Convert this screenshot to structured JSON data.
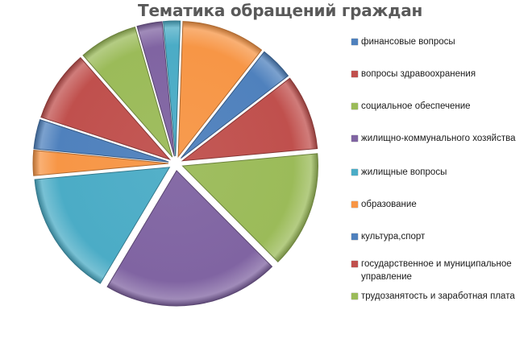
{
  "chart_data": {
    "type": "pie",
    "title": "Тематика обращений граждан",
    "legend_position": "right",
    "exploded": true,
    "categories": [
      "финансовые вопросы",
      "вопросы здравоохранения",
      "социальное обеспечение",
      "жилищно-коммунального хозяйства",
      "жилищные вопросы",
      "образование",
      "культура,спорт",
      "государственное и муниципальное управление",
      "трудозанятость и заработная плата"
    ],
    "slices_clockwise_from_top": [
      {
        "label": "",
        "value": 10.0,
        "color": "#F79646"
      },
      {
        "label": "финансовые вопросы",
        "value": 4.0,
        "color": "#4F81BD"
      },
      {
        "label": "вопросы здравоохранения",
        "value": 9.0,
        "color": "#C0504D"
      },
      {
        "label": "социальное обеспечение",
        "value": 14.0,
        "color": "#9BBB59"
      },
      {
        "label": "жилищно-коммунального хозяйства",
        "value": 21.0,
        "color": "#8064A2"
      },
      {
        "label": "жилищные вопросы",
        "value": 15.0,
        "color": "#4BACC6"
      },
      {
        "label": "образование",
        "value": 3.0,
        "color": "#F79646"
      },
      {
        "label": "культура,спорт",
        "value": 3.5,
        "color": "#4F81BD"
      },
      {
        "label": "государственное и муниципальное управление",
        "value": 8.5,
        "color": "#C0504D"
      },
      {
        "label": "трудозанятость и заработная плата",
        "value": 7.0,
        "color": "#9BBB59"
      },
      {
        "label": "",
        "value": 3.0,
        "color": "#8064A2"
      },
      {
        "label": "",
        "value": 2.0,
        "color": "#4BACC6"
      }
    ]
  },
  "legend": [
    {
      "label": "финансовые вопросы",
      "color": "#4F81BD"
    },
    {
      "label": "вопросы здравоохранения",
      "color": "#C0504D"
    },
    {
      "label": "социальное обеспечение",
      "color": "#9BBB59"
    },
    {
      "label": "жилищно-коммунального хозяйства",
      "color": "#8064A2"
    },
    {
      "label": "жилищные вопросы",
      "color": "#4BACC6"
    },
    {
      "label": "образование",
      "color": "#F79646"
    },
    {
      "label": "культура,спорт",
      "color": "#4F81BD"
    },
    {
      "label": "государственное и муниципальное управление",
      "color": "#C0504D"
    },
    {
      "label": "трудозанятость и заработная плата",
      "color": "#9BBB59"
    }
  ]
}
